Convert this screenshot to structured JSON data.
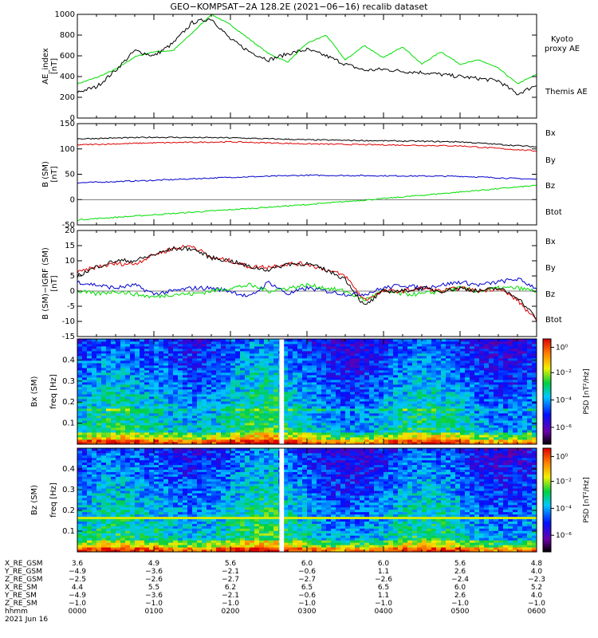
{
  "title": "GEO−KOMPSAT−2A 128.2E (2021−06−16) recalib dataset",
  "chart_data": [
    {
      "type": "line",
      "panel": "ae",
      "ylabel": "AE_index",
      "yunit": "[nT]",
      "ylim": [
        0,
        1000
      ],
      "yticks": [
        0,
        200,
        400,
        600,
        800,
        1000
      ],
      "x_hours": [
        0.0,
        0.25,
        0.5,
        0.75,
        1.0,
        1.25,
        1.5,
        1.75,
        2.0,
        2.25,
        2.5,
        2.75,
        3.0,
        3.25,
        3.5,
        3.75,
        4.0,
        4.25,
        4.5,
        4.75,
        5.0,
        5.25,
        5.5,
        5.75,
        6.0
      ],
      "series": [
        {
          "name": "Kyoto\nproxy AE",
          "color": "#00dd00",
          "values": [
            330,
            390,
            470,
            590,
            640,
            650,
            820,
            1000,
            900,
            760,
            620,
            540,
            720,
            800,
            560,
            700,
            580,
            690,
            520,
            640,
            520,
            560,
            480,
            330,
            420
          ]
        },
        {
          "name": "Themis AE",
          "color": "#000000",
          "values": [
            250,
            300,
            460,
            650,
            600,
            720,
            920,
            960,
            760,
            640,
            560,
            620,
            660,
            600,
            520,
            460,
            470,
            450,
            440,
            420,
            400,
            380,
            360,
            230,
            320
          ]
        }
      ]
    },
    {
      "type": "line",
      "panel": "b",
      "ylabel": "B (SM)",
      "yunit": "[nT]",
      "ylim": [
        -50,
        150
      ],
      "yticks": [
        -50,
        0,
        50,
        100,
        150
      ],
      "x_hours": [
        0,
        1,
        2,
        3,
        4,
        5,
        6
      ],
      "series": [
        {
          "name": "Bx",
          "color": "#0000cc",
          "values": [
            33,
            38,
            44,
            48,
            47,
            46,
            40
          ]
        },
        {
          "name": "By",
          "color": "#00dd00",
          "values": [
            -40,
            -30,
            -20,
            -10,
            2,
            15,
            28
          ]
        },
        {
          "name": "Bz",
          "color": "#dd0000",
          "values": [
            108,
            112,
            114,
            110,
            108,
            106,
            96
          ]
        },
        {
          "name": "Btot",
          "color": "#000000",
          "values": [
            120,
            123,
            122,
            118,
            116,
            114,
            104
          ]
        }
      ]
    },
    {
      "type": "line",
      "panel": "db",
      "ylabel": "B (SM)−IGRF (SM)",
      "yunit": "[nT]",
      "ylim": [
        -15,
        20
      ],
      "yticks": [
        -15,
        -10,
        -5,
        0,
        5,
        10,
        15,
        20
      ],
      "x_hours": [
        0.0,
        0.25,
        0.5,
        0.75,
        1.0,
        1.25,
        1.5,
        1.75,
        2.0,
        2.25,
        2.5,
        2.75,
        3.0,
        3.25,
        3.5,
        3.75,
        4.0,
        4.25,
        4.5,
        4.75,
        5.0,
        5.25,
        5.5,
        5.75,
        6.0
      ],
      "series": [
        {
          "name": "Bx",
          "color": "#0000cc",
          "values": [
            3,
            2,
            1,
            2,
            -1,
            0,
            1,
            1,
            0,
            -2,
            3,
            -1,
            1,
            0,
            -1,
            -1,
            1,
            2,
            1,
            2,
            3,
            2,
            3,
            4,
            1
          ]
        },
        {
          "name": "By",
          "color": "#00dd00",
          "values": [
            0,
            -1,
            0,
            -1,
            -2,
            -1,
            -1,
            0,
            1,
            2,
            0,
            1,
            2,
            1,
            0,
            -3,
            0,
            -1,
            -1,
            0,
            1,
            0,
            1,
            1,
            0
          ]
        },
        {
          "name": "Bz",
          "color": "#dd0000",
          "values": [
            6,
            8,
            9,
            9,
            12,
            14,
            15,
            11,
            10,
            8,
            8,
            9,
            9,
            7,
            5,
            -3,
            0,
            0,
            1,
            0,
            1,
            0,
            1,
            -3,
            -10
          ]
        },
        {
          "name": "Btot",
          "color": "#000000",
          "values": [
            5,
            8,
            10,
            10,
            12,
            14,
            14,
            11,
            10,
            8,
            7,
            9,
            9,
            7,
            4,
            -5,
            0,
            0,
            1,
            0,
            1,
            0,
            1,
            -2,
            -9
          ]
        }
      ]
    },
    {
      "type": "heatmap",
      "panel": "spec_bx",
      "ylabel": "Bx (SM)",
      "yunit": "freq [Hz]",
      "ylim": [
        0,
        0.5
      ],
      "yticks": [
        0.1,
        0.2,
        0.3,
        0.4
      ],
      "cbar_label": "PSD [nT²/Hz]",
      "cbar_ticks": [
        "10⁰",
        "10⁻²",
        "10⁻⁴",
        "10⁻⁶"
      ],
      "data_gap_hours": [
        2.64,
        2.7
      ]
    },
    {
      "type": "heatmap",
      "panel": "spec_bz",
      "ylabel": "Bz (SM)",
      "yunit": "freq [Hz]",
      "ylim": [
        0,
        0.5
      ],
      "yticks": [
        0.1,
        0.2,
        0.3,
        0.4
      ],
      "cbar_label": "PSD [nT²/Hz]",
      "cbar_ticks": [
        "10⁰",
        "10⁻²",
        "10⁻⁴",
        "10⁻⁶"
      ],
      "data_gap_hours": [
        2.64,
        2.7
      ]
    }
  ],
  "ephemeris": {
    "rows": [
      {
        "label": "X_RE_GSM",
        "values": [
          "3.6",
          "4.9",
          "5.6",
          "6.0",
          "6.0",
          "5.6",
          "4.8"
        ]
      },
      {
        "label": "Y_RE_GSM",
        "values": [
          "−4.9",
          "−3.6",
          "−2.1",
          "−0.6",
          "1.1",
          "2.6",
          "4.0"
        ]
      },
      {
        "label": "Z_RE_GSM",
        "values": [
          "−2.5",
          "−2.6",
          "−2.7",
          "−2.7",
          "−2.6",
          "−2.4",
          "−2.3"
        ]
      },
      {
        "label": "X_RE_SM",
        "values": [
          "4.4",
          "5.5",
          "6.2",
          "6.5",
          "6.5",
          "6.0",
          "5.2"
        ]
      },
      {
        "label": "Y_RE_SM",
        "values": [
          "−4.9",
          "−3.6",
          "−2.1",
          "−0.6",
          "1.1",
          "2.6",
          "4.0"
        ]
      },
      {
        "label": "Z_RE_SM",
        "values": [
          "−1.0",
          "−1.0",
          "−1.0",
          "−1.0",
          "−1.0",
          "−1.0",
          "−1.0"
        ]
      },
      {
        "label": "hhmm",
        "values": [
          "0000",
          "0100",
          "0200",
          "0300",
          "0400",
          "0500",
          "0600"
        ]
      }
    ],
    "date": "2021 Jun 16"
  }
}
